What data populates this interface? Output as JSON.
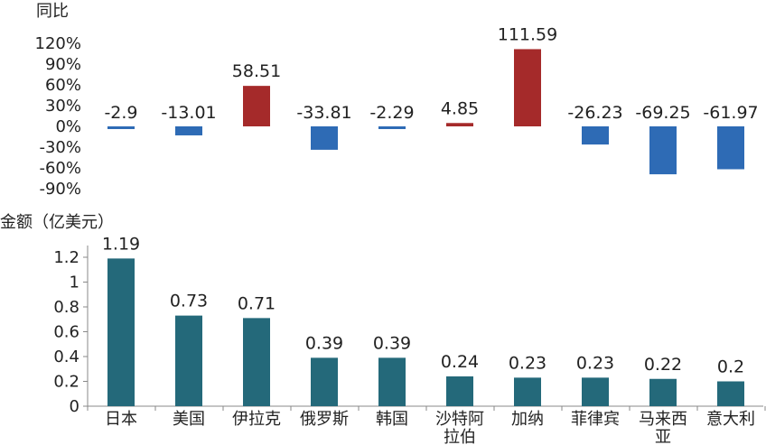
{
  "chart_data": [
    {
      "type": "bar",
      "ylabel": "同比",
      "unit": "%",
      "categories": [
        "日本",
        "美国",
        "伊拉克",
        "俄罗斯",
        "韩国",
        "沙特阿拉伯",
        "加纳",
        "菲律宾",
        "马来西亚",
        "意大利"
      ],
      "values": [
        -2.9,
        -13.01,
        58.51,
        -33.81,
        -2.29,
        4.85,
        111.59,
        -26.23,
        -69.25,
        -61.97
      ],
      "value_labels": [
        "-2.9",
        "-13.01",
        "58.51",
        "-33.81",
        "-2.29",
        "4.85",
        "111.59",
        "-26.23",
        "-69.25",
        "-61.97"
      ],
      "yticks": [
        "120%",
        "90%",
        "60%",
        "30%",
        "0%",
        "-30%",
        "-60%",
        "-90%"
      ],
      "ytick_values": [
        120,
        90,
        60,
        30,
        0,
        -30,
        -60,
        -90
      ],
      "ylim": [
        -90,
        120
      ],
      "grid": false,
      "colors": {
        "positive": "#A52A2A",
        "negative": "#2E6BB5"
      }
    },
    {
      "type": "bar",
      "ylabel": "金额（亿美元）",
      "categories": [
        "日本",
        "美国",
        "伊拉克",
        "俄罗斯",
        "韩国",
        "沙特阿拉伯",
        "加纳",
        "菲律宾",
        "马来西亚",
        "意大利"
      ],
      "category_lines": [
        [
          "日本"
        ],
        [
          "美国"
        ],
        [
          "伊拉克"
        ],
        [
          "俄罗斯"
        ],
        [
          "韩国"
        ],
        [
          "沙特阿",
          "拉伯"
        ],
        [
          "加纳"
        ],
        [
          "菲律宾"
        ],
        [
          "马来西",
          "亚"
        ],
        [
          "意大利"
        ]
      ],
      "values": [
        1.19,
        0.73,
        0.71,
        0.39,
        0.39,
        0.24,
        0.23,
        0.23,
        0.22,
        0.2
      ],
      "value_labels": [
        "1.19",
        "0.73",
        "0.71",
        "0.39",
        "0.39",
        "0.24",
        "0.23",
        "0.23",
        "0.22",
        "0.2"
      ],
      "yticks": [
        "1.2",
        "1",
        "0.8",
        "0.6",
        "0.4",
        "0.2",
        "0"
      ],
      "ytick_values": [
        1.2,
        1.0,
        0.8,
        0.6,
        0.4,
        0.2,
        0
      ],
      "ylim": [
        0,
        1.2
      ],
      "grid": false,
      "colors": {
        "bar": "#24697A",
        "axis": "#888888"
      }
    }
  ]
}
